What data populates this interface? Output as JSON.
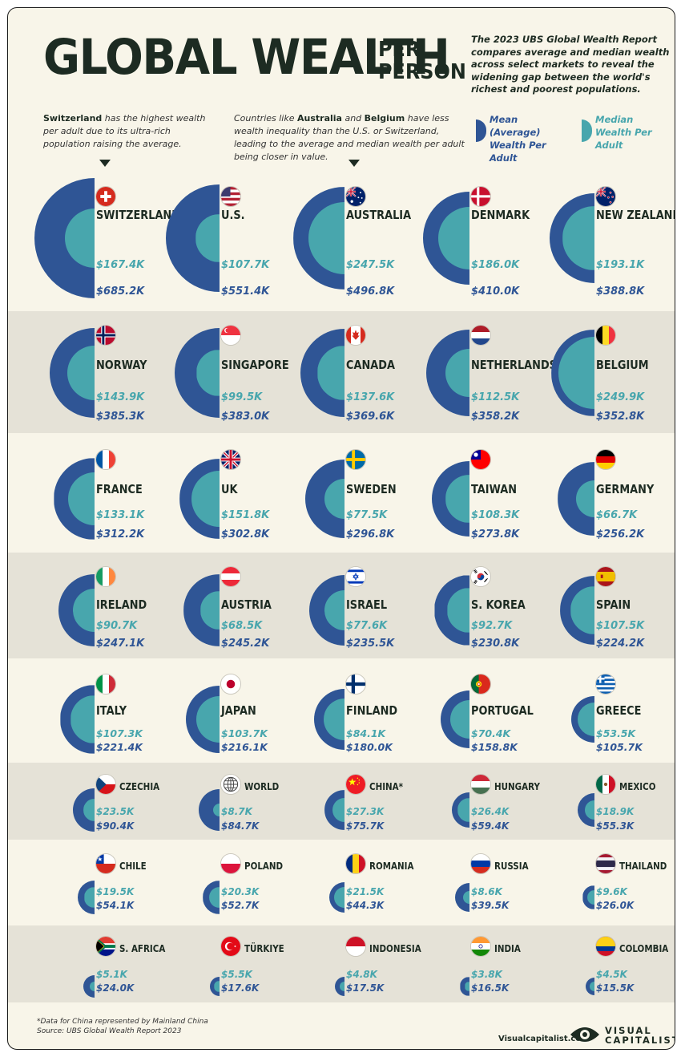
{
  "header": {
    "title": "GLOBAL WEALTH",
    "title_sub": "PER PERSON",
    "intro": "The 2023 UBS Global Wealth Report compares average and median wealth across select markets to reveal the widening gap between the world's richest and poorest populations."
  },
  "notes": {
    "switzerland_bold": "Switzerland",
    "switzerland_text": " has the highest wealth per adult due to its ultra-rich population raising the average.",
    "australia_pre": "Countries like ",
    "australia_bold1": "Australia",
    "australia_mid": " and ",
    "australia_bold2": "Belgium",
    "australia_post": " have less wealth inequality than the U.S. or Switzerland, leading to the average and median wealth per adult being closer in value."
  },
  "legend": {
    "mean_label": "Mean (Average) Wealth Per Adult",
    "median_label": "Median Wealth Per Adult"
  },
  "colors": {
    "mean": "#2f5595",
    "median": "#48a6ad",
    "band": "#e5e2d7",
    "background": "#f8f5e9",
    "ink": "#1d2b22"
  },
  "chart_data": {
    "type": "semicircle-comparison",
    "title": "GLOBAL WEALTH PER PERSON",
    "series": [
      {
        "name": "Mean (Average) Wealth Per Adult"
      },
      {
        "name": "Median Wealth Per Adult"
      }
    ],
    "countries": [
      {
        "name": "SWITZERLAND",
        "flag": "switzerland-flag-icon",
        "median": 167.4,
        "mean": 685.2,
        "median_label": "$167.4K",
        "mean_label": "$685.2K"
      },
      {
        "name": "U.S.",
        "flag": "us-flag-icon",
        "median": 107.7,
        "mean": 551.4,
        "median_label": "$107.7K",
        "mean_label": "$551.4K"
      },
      {
        "name": "AUSTRALIA",
        "flag": "australia-flag-icon",
        "median": 247.5,
        "mean": 496.8,
        "median_label": "$247.5K",
        "mean_label": "$496.8K"
      },
      {
        "name": "DENMARK",
        "flag": "denmark-flag-icon",
        "median": 186.0,
        "mean": 410.0,
        "median_label": "$186.0K",
        "mean_label": "$410.0K"
      },
      {
        "name": "NEW ZEALAND",
        "flag": "new-zealand-flag-icon",
        "median": 193.1,
        "mean": 388.8,
        "median_label": "$193.1K",
        "mean_label": "$388.8K"
      },
      {
        "name": "NORWAY",
        "flag": "norway-flag-icon",
        "median": 143.9,
        "mean": 385.3,
        "median_label": "$143.9K",
        "mean_label": "$385.3K"
      },
      {
        "name": "SINGAPORE",
        "flag": "singapore-flag-icon",
        "median": 99.5,
        "mean": 383.0,
        "median_label": "$99.5K",
        "mean_label": "$383.0K"
      },
      {
        "name": "CANADA",
        "flag": "canada-flag-icon",
        "median": 137.6,
        "mean": 369.6,
        "median_label": "$137.6K",
        "mean_label": "$369.6K"
      },
      {
        "name": "NETHERLANDS",
        "flag": "netherlands-flag-icon",
        "median": 112.5,
        "mean": 358.2,
        "median_label": "$112.5K",
        "mean_label": "$358.2K"
      },
      {
        "name": "BELGIUM",
        "flag": "belgium-flag-icon",
        "median": 249.9,
        "mean": 352.8,
        "median_label": "$249.9K",
        "mean_label": "$352.8K"
      },
      {
        "name": "FRANCE",
        "flag": "france-flag-icon",
        "median": 133.1,
        "mean": 312.2,
        "median_label": "$133.1K",
        "mean_label": "$312.2K"
      },
      {
        "name": "UK",
        "flag": "uk-flag-icon",
        "median": 151.8,
        "mean": 302.8,
        "median_label": "$151.8K",
        "mean_label": "$302.8K"
      },
      {
        "name": "SWEDEN",
        "flag": "sweden-flag-icon",
        "median": 77.5,
        "mean": 296.8,
        "median_label": "$77.5K",
        "mean_label": "$296.8K"
      },
      {
        "name": "TAIWAN",
        "flag": "taiwan-flag-icon",
        "median": 108.3,
        "mean": 273.8,
        "median_label": "$108.3K",
        "mean_label": "$273.8K"
      },
      {
        "name": "GERMANY",
        "flag": "germany-flag-icon",
        "median": 66.7,
        "mean": 256.2,
        "median_label": "$66.7K",
        "mean_label": "$256.2K"
      },
      {
        "name": "IRELAND",
        "flag": "ireland-flag-icon",
        "median": 90.7,
        "mean": 247.1,
        "median_label": "$90.7K",
        "mean_label": "$247.1K"
      },
      {
        "name": "AUSTRIA",
        "flag": "austria-flag-icon",
        "median": 68.5,
        "mean": 245.2,
        "median_label": "$68.5K",
        "mean_label": "$245.2K"
      },
      {
        "name": "ISRAEL",
        "flag": "israel-flag-icon",
        "median": 77.6,
        "mean": 235.5,
        "median_label": "$77.6K",
        "mean_label": "$235.5K"
      },
      {
        "name": "S. KOREA",
        "flag": "south-korea-flag-icon",
        "median": 92.7,
        "mean": 230.8,
        "median_label": "$92.7K",
        "mean_label": "$230.8K"
      },
      {
        "name": "SPAIN",
        "flag": "spain-flag-icon",
        "median": 107.5,
        "mean": 224.2,
        "median_label": "$107.5K",
        "mean_label": "$224.2K"
      },
      {
        "name": "ITALY",
        "flag": "italy-flag-icon",
        "median": 107.3,
        "mean": 221.4,
        "median_label": "$107.3K",
        "mean_label": "$221.4K"
      },
      {
        "name": "JAPAN",
        "flag": "japan-flag-icon",
        "median": 103.7,
        "mean": 216.1,
        "median_label": "$103.7K",
        "mean_label": "$216.1K"
      },
      {
        "name": "FINLAND",
        "flag": "finland-flag-icon",
        "median": 84.1,
        "mean": 180.0,
        "median_label": "$84.1K",
        "mean_label": "$180.0K"
      },
      {
        "name": "PORTUGAL",
        "flag": "portugal-flag-icon",
        "median": 70.4,
        "mean": 158.8,
        "median_label": "$70.4K",
        "mean_label": "$158.8K"
      },
      {
        "name": "GREECE",
        "flag": "greece-flag-icon",
        "median": 53.5,
        "mean": 105.7,
        "median_label": "$53.5K",
        "mean_label": "$105.7K"
      },
      {
        "name": "CZECHIA",
        "flag": "czechia-flag-icon",
        "median": 23.5,
        "mean": 90.4,
        "median_label": "$23.5K",
        "mean_label": "$90.4K"
      },
      {
        "name": "WORLD",
        "flag": "globe-icon",
        "median": 8.7,
        "mean": 84.7,
        "median_label": "$8.7K",
        "mean_label": "$84.7K"
      },
      {
        "name": "CHINA*",
        "flag": "china-flag-icon",
        "median": 27.3,
        "mean": 75.7,
        "median_label": "$27.3K",
        "mean_label": "$75.7K"
      },
      {
        "name": "HUNGARY",
        "flag": "hungary-flag-icon",
        "median": 26.4,
        "mean": 59.4,
        "median_label": "$26.4K",
        "mean_label": "$59.4K"
      },
      {
        "name": "MEXICO",
        "flag": "mexico-flag-icon",
        "median": 18.9,
        "mean": 55.3,
        "median_label": "$18.9K",
        "mean_label": "$55.3K"
      },
      {
        "name": "CHILE",
        "flag": "chile-flag-icon",
        "median": 19.5,
        "mean": 54.1,
        "median_label": "$19.5K",
        "mean_label": "$54.1K"
      },
      {
        "name": "POLAND",
        "flag": "poland-flag-icon",
        "median": 20.3,
        "mean": 52.7,
        "median_label": "$20.3K",
        "mean_label": "$52.7K"
      },
      {
        "name": "ROMANIA",
        "flag": "romania-flag-icon",
        "median": 21.5,
        "mean": 44.3,
        "median_label": "$21.5K",
        "mean_label": "$44.3K"
      },
      {
        "name": "RUSSIA",
        "flag": "russia-flag-icon",
        "median": 8.6,
        "mean": 39.5,
        "median_label": "$8.6K",
        "mean_label": "$39.5K"
      },
      {
        "name": "THAILAND",
        "flag": "thailand-flag-icon",
        "median": 9.6,
        "mean": 26.0,
        "median_label": "$9.6K",
        "mean_label": "$26.0K"
      },
      {
        "name": "S. AFRICA",
        "flag": "south-africa-flag-icon",
        "median": 5.1,
        "mean": 24.0,
        "median_label": "$5.1K",
        "mean_label": "$24.0K"
      },
      {
        "name": "TÜRKIYE",
        "flag": "turkiye-flag-icon",
        "median": 5.5,
        "mean": 17.6,
        "median_label": "$5.5K",
        "mean_label": "$17.6K"
      },
      {
        "name": "INDONESIA",
        "flag": "indonesia-flag-icon",
        "median": 4.8,
        "mean": 17.5,
        "median_label": "$4.8K",
        "mean_label": "$17.5K"
      },
      {
        "name": "INDIA",
        "flag": "india-flag-icon",
        "median": 3.8,
        "mean": 16.5,
        "median_label": "$3.8K",
        "mean_label": "$16.5K"
      },
      {
        "name": "COLOMBIA",
        "flag": "colombia-flag-icon",
        "median": 4.5,
        "mean": 15.5,
        "median_label": "$4.5K",
        "mean_label": "$15.5K"
      }
    ]
  },
  "footer": {
    "footnote": "*Data for China represented by Mainland China",
    "source": "Source: UBS Global Wealth Report 2023",
    "domain": "Visualcapitalist.com",
    "brand_line1": "VISUAL",
    "brand_line2": "CAPITALIST"
  }
}
